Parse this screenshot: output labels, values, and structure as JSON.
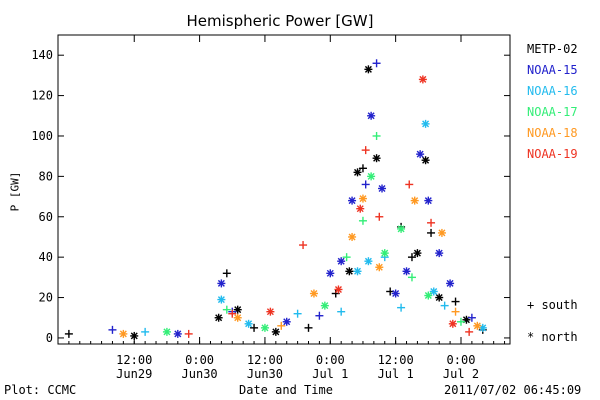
{
  "chart_data": {
    "type": "scatter",
    "title": "Hemispheric Power [GW]",
    "xlabel": "Date and Time",
    "ylabel": "P [GW]",
    "xlim": [
      "2011-06-28T22:00",
      "2011-07-02T09:00"
    ],
    "ylim": [
      -3,
      150
    ],
    "y_ticks": [
      0,
      20,
      40,
      60,
      80,
      100,
      120,
      140
    ],
    "x_ticks": [
      {
        "time": "2011-06-29T12:00",
        "line1": "12:00",
        "line2": "Jun29"
      },
      {
        "time": "2011-06-30T00:00",
        "line1": "0:00",
        "line2": "Jun30"
      },
      {
        "time": "2011-06-30T12:00",
        "line1": "12:00",
        "line2": "Jun30"
      },
      {
        "time": "2011-07-01T00:00",
        "line1": "0:00",
        "line2": "Jul 1"
      },
      {
        "time": "2011-07-01T12:00",
        "line1": "12:00",
        "line2": "Jul 1"
      },
      {
        "time": "2011-07-02T00:00",
        "line1": "0:00",
        "line2": "Jul 2"
      }
    ],
    "legend_position": "right",
    "symbol_legend": [
      {
        "symbol": "+",
        "label": "south"
      },
      {
        "symbol": "*",
        "label": "north"
      }
    ],
    "series": [
      {
        "name": "METP-02",
        "color": "#000000",
        "points": [
          {
            "x": "2011-06-30T05:00",
            "y": 32,
            "marker": "+"
          },
          {
            "x": "2011-06-30T03:30",
            "y": 10,
            "marker": "*"
          },
          {
            "x": "2011-06-30T07:00",
            "y": 14,
            "marker": "*"
          },
          {
            "x": "2011-06-30T10:00",
            "y": 5,
            "marker": "+"
          },
          {
            "x": "2011-06-30T14:00",
            "y": 3,
            "marker": "*"
          },
          {
            "x": "2011-06-30T20:00",
            "y": 5,
            "marker": "+"
          },
          {
            "x": "2011-07-01T01:00",
            "y": 22,
            "marker": "+"
          },
          {
            "x": "2011-07-01T03:30",
            "y": 33,
            "marker": "*"
          },
          {
            "x": "2011-07-01T05:00",
            "y": 82,
            "marker": "*"
          },
          {
            "x": "2011-07-01T06:00",
            "y": 84,
            "marker": "+"
          },
          {
            "x": "2011-07-01T07:00",
            "y": 133,
            "marker": "*"
          },
          {
            "x": "2011-07-01T08:30",
            "y": 89,
            "marker": "*"
          },
          {
            "x": "2011-07-01T11:00",
            "y": 23,
            "marker": "+"
          },
          {
            "x": "2011-07-01T13:00",
            "y": 55,
            "marker": "+"
          },
          {
            "x": "2011-07-01T15:00",
            "y": 40,
            "marker": "+"
          },
          {
            "x": "2011-07-01T16:00",
            "y": 42,
            "marker": "*"
          },
          {
            "x": "2011-07-01T17:30",
            "y": 88,
            "marker": "*"
          },
          {
            "x": "2011-07-01T18:30",
            "y": 52,
            "marker": "+"
          },
          {
            "x": "2011-07-01T20:00",
            "y": 20,
            "marker": "*"
          },
          {
            "x": "2011-07-01T23:00",
            "y": 18,
            "marker": "+"
          },
          {
            "x": "2011-07-02T01:00",
            "y": 9,
            "marker": "*"
          },
          {
            "x": "2011-07-02T04:00",
            "y": 4,
            "marker": "+"
          },
          {
            "x": "2011-06-29T00:00",
            "y": 2,
            "marker": "+"
          },
          {
            "x": "2011-06-29T12:00",
            "y": 1,
            "marker": "*"
          }
        ]
      },
      {
        "name": "NOAA-15",
        "color": "#2222cc",
        "points": [
          {
            "x": "2011-06-30T04:00",
            "y": 27,
            "marker": "*"
          },
          {
            "x": "2011-06-30T06:00",
            "y": 13,
            "marker": "+"
          },
          {
            "x": "2011-06-30T16:00",
            "y": 8,
            "marker": "*"
          },
          {
            "x": "2011-06-30T22:00",
            "y": 11,
            "marker": "+"
          },
          {
            "x": "2011-07-01T00:00",
            "y": 32,
            "marker": "*"
          },
          {
            "x": "2011-07-01T02:00",
            "y": 38,
            "marker": "*"
          },
          {
            "x": "2011-07-01T04:00",
            "y": 68,
            "marker": "*"
          },
          {
            "x": "2011-07-01T06:30",
            "y": 76,
            "marker": "+"
          },
          {
            "x": "2011-07-01T07:30",
            "y": 110,
            "marker": "*"
          },
          {
            "x": "2011-07-01T08:30",
            "y": 136,
            "marker": "+"
          },
          {
            "x": "2011-07-01T09:30",
            "y": 74,
            "marker": "*"
          },
          {
            "x": "2011-07-01T12:00",
            "y": 22,
            "marker": "*"
          },
          {
            "x": "2011-07-01T14:00",
            "y": 33,
            "marker": "*"
          },
          {
            "x": "2011-07-01T16:30",
            "y": 91,
            "marker": "*"
          },
          {
            "x": "2011-07-01T18:00",
            "y": 68,
            "marker": "*"
          },
          {
            "x": "2011-07-01T20:00",
            "y": 42,
            "marker": "*"
          },
          {
            "x": "2011-07-01T22:00",
            "y": 27,
            "marker": "*"
          },
          {
            "x": "2011-07-02T02:00",
            "y": 10,
            "marker": "+"
          },
          {
            "x": "2011-06-29T08:00",
            "y": 4,
            "marker": "+"
          },
          {
            "x": "2011-06-29T20:00",
            "y": 2,
            "marker": "*"
          }
        ]
      },
      {
        "name": "NOAA-16",
        "color": "#22bbee",
        "points": [
          {
            "x": "2011-06-30T04:00",
            "y": 19,
            "marker": "*"
          },
          {
            "x": "2011-06-30T09:00",
            "y": 7,
            "marker": "*"
          },
          {
            "x": "2011-06-30T18:00",
            "y": 12,
            "marker": "+"
          },
          {
            "x": "2011-07-01T02:00",
            "y": 13,
            "marker": "+"
          },
          {
            "x": "2011-07-01T05:00",
            "y": 33,
            "marker": "*"
          },
          {
            "x": "2011-07-01T07:00",
            "y": 38,
            "marker": "*"
          },
          {
            "x": "2011-07-01T10:00",
            "y": 40,
            "marker": "+"
          },
          {
            "x": "2011-07-01T13:00",
            "y": 15,
            "marker": "+"
          },
          {
            "x": "2011-07-01T17:30",
            "y": 106,
            "marker": "*"
          },
          {
            "x": "2011-07-01T19:00",
            "y": 23,
            "marker": "*"
          },
          {
            "x": "2011-07-01T21:00",
            "y": 16,
            "marker": "+"
          },
          {
            "x": "2011-07-02T04:00",
            "y": 5,
            "marker": "*"
          },
          {
            "x": "2011-06-29T14:00",
            "y": 3,
            "marker": "+"
          }
        ]
      },
      {
        "name": "NOAA-17",
        "color": "#33ee77",
        "points": [
          {
            "x": "2011-06-30T05:00",
            "y": 14,
            "marker": "+"
          },
          {
            "x": "2011-06-30T12:00",
            "y": 5,
            "marker": "*"
          },
          {
            "x": "2011-06-30T23:00",
            "y": 16,
            "marker": "*"
          },
          {
            "x": "2011-07-01T03:00",
            "y": 40,
            "marker": "+"
          },
          {
            "x": "2011-07-01T06:00",
            "y": 58,
            "marker": "+"
          },
          {
            "x": "2011-07-01T07:30",
            "y": 80,
            "marker": "*"
          },
          {
            "x": "2011-07-01T08:30",
            "y": 100,
            "marker": "+"
          },
          {
            "x": "2011-07-01T10:00",
            "y": 42,
            "marker": "*"
          },
          {
            "x": "2011-07-01T13:00",
            "y": 54,
            "marker": "*"
          },
          {
            "x": "2011-07-01T15:00",
            "y": 30,
            "marker": "+"
          },
          {
            "x": "2011-07-01T18:00",
            "y": 21,
            "marker": "*"
          },
          {
            "x": "2011-07-02T00:00",
            "y": 8,
            "marker": "+"
          },
          {
            "x": "2011-06-29T18:00",
            "y": 3,
            "marker": "*"
          }
        ]
      },
      {
        "name": "NOAA-18",
        "color": "#ff9922",
        "points": [
          {
            "x": "2011-06-30T07:00",
            "y": 10,
            "marker": "*"
          },
          {
            "x": "2011-06-30T15:00",
            "y": 6,
            "marker": "+"
          },
          {
            "x": "2011-06-30T21:00",
            "y": 22,
            "marker": "*"
          },
          {
            "x": "2011-07-01T04:00",
            "y": 50,
            "marker": "*"
          },
          {
            "x": "2011-07-01T06:00",
            "y": 69,
            "marker": "*"
          },
          {
            "x": "2011-07-01T09:00",
            "y": 35,
            "marker": "*"
          },
          {
            "x": "2011-07-01T15:30",
            "y": 68,
            "marker": "*"
          },
          {
            "x": "2011-07-01T20:30",
            "y": 52,
            "marker": "*"
          },
          {
            "x": "2011-07-01T23:00",
            "y": 13,
            "marker": "+"
          },
          {
            "x": "2011-07-02T03:00",
            "y": 6,
            "marker": "*"
          },
          {
            "x": "2011-06-29T10:00",
            "y": 2,
            "marker": "*"
          }
        ]
      },
      {
        "name": "NOAA-19",
        "color": "#ee3322",
        "points": [
          {
            "x": "2011-06-30T06:00",
            "y": 12,
            "marker": "+"
          },
          {
            "x": "2011-06-30T13:00",
            "y": 13,
            "marker": "*"
          },
          {
            "x": "2011-06-30T19:00",
            "y": 46,
            "marker": "+"
          },
          {
            "x": "2011-07-01T01:30",
            "y": 24,
            "marker": "*"
          },
          {
            "x": "2011-07-01T05:30",
            "y": 64,
            "marker": "*"
          },
          {
            "x": "2011-07-01T06:30",
            "y": 93,
            "marker": "+"
          },
          {
            "x": "2011-07-01T09:00",
            "y": 60,
            "marker": "+"
          },
          {
            "x": "2011-07-01T14:30",
            "y": 76,
            "marker": "+"
          },
          {
            "x": "2011-07-01T17:00",
            "y": 128,
            "marker": "*"
          },
          {
            "x": "2011-07-01T18:30",
            "y": 57,
            "marker": "+"
          },
          {
            "x": "2011-07-01T22:30",
            "y": 7,
            "marker": "*"
          },
          {
            "x": "2011-07-02T01:30",
            "y": 3,
            "marker": "+"
          },
          {
            "x": "2011-06-29T22:00",
            "y": 2,
            "marker": "+"
          }
        ]
      }
    ]
  },
  "footer": {
    "left": "Plot: CCMC",
    "center": "Date and Time",
    "right": "2011/07/02 06:45:09"
  }
}
